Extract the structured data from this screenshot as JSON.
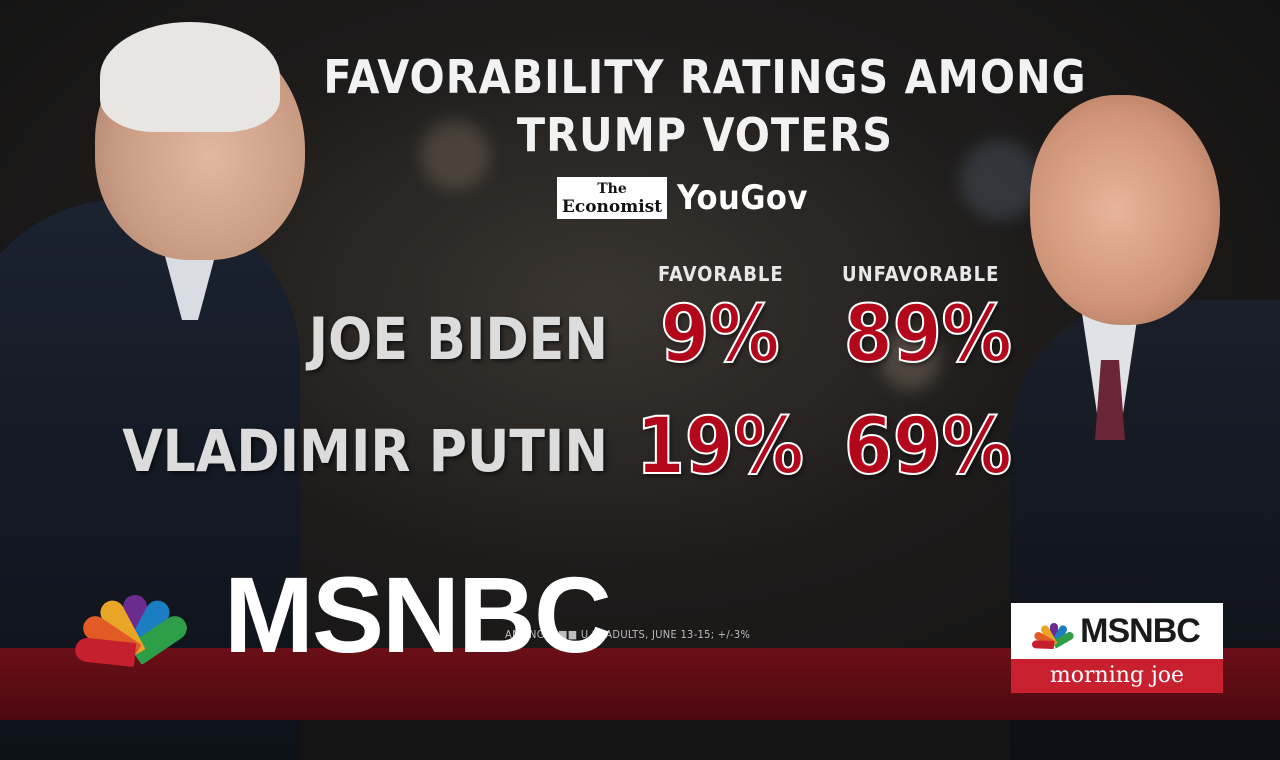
{
  "title": {
    "line1": "FAVORABILITY RATINGS AMONG",
    "line2": "TRUMP VOTERS"
  },
  "logos": {
    "economist_the": "The",
    "economist_name": "Economist",
    "yougov": "YouGov"
  },
  "columns": {
    "favorable": "FAVORABLE",
    "unfavorable": "UNFAVORABLE"
  },
  "rows": [
    {
      "name": "JOE BIDEN",
      "favorable": "9%",
      "unfavorable": "89%"
    },
    {
      "name": "VLADIMIR PUTIN",
      "favorable": "19%",
      "unfavorable": "69%"
    }
  ],
  "source": "AMONG 1,■■ U.S. ADULTS, JUNE 13-15; +/-3%",
  "network": {
    "logo_text": "MSNBC"
  },
  "show_badge": {
    "network": "MSNBC",
    "show": "morning joe"
  },
  "colors": {
    "accent_red": "#b3071c",
    "band_red": "#6b0f17",
    "badge_red": "#c8202e"
  },
  "icons": {
    "peacock": "nbc-peacock-icon"
  }
}
